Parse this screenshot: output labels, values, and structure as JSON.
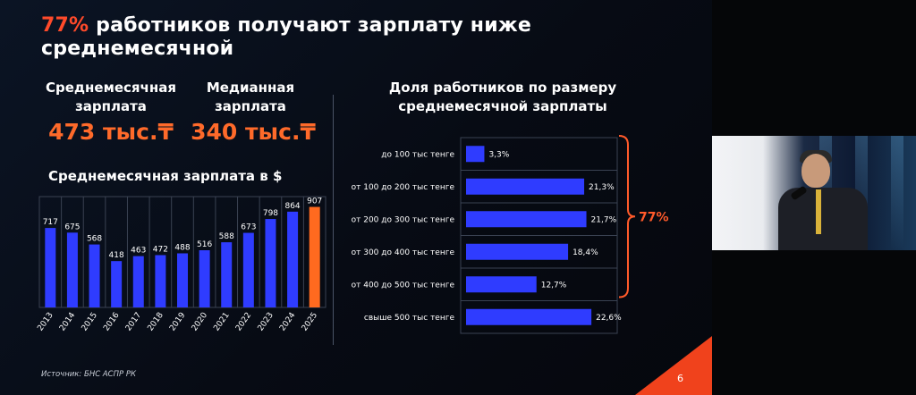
{
  "slide": {
    "title_accent": "77%",
    "title_rest": " работников получают зарплату ниже среднемесячной",
    "kpi1_label": "Среднемесячная зарплата",
    "kpi1_value": "473 тыс.₸",
    "kpi2_label": "Медианная зарплата",
    "kpi2_value": "340 тыс.₸",
    "left_chart_title": "Среднемесячная зарплата в $",
    "right_chart_title": "Доля работников по размеру среднемесячной зарплаты",
    "bracket_label": "77%",
    "source": "Источник: БНС АСПР РК",
    "page_number": "6"
  },
  "colors": {
    "bar_blue": "#2f3cff",
    "bar_highlight": "#ff6a1f",
    "accent": "#ff4a2a",
    "bracket": "#ff5a2a"
  },
  "chart_data": [
    {
      "type": "bar",
      "title": "Среднемесячная зарплата в $",
      "categories": [
        "2013",
        "2014",
        "2015",
        "2016",
        "2017",
        "2018",
        "2019",
        "2020",
        "2021",
        "2022",
        "2023",
        "2024",
        "2025"
      ],
      "values": [
        717,
        675,
        568,
        418,
        463,
        472,
        488,
        516,
        588,
        673,
        798,
        864,
        907
      ],
      "labels": [
        "717",
        "675",
        "568",
        "418",
        "463",
        "472",
        "488",
        "516",
        "588",
        "673",
        "798",
        "864",
        "907"
      ],
      "highlight_index": 12,
      "ylim": [
        0,
        1000
      ],
      "grid": false,
      "legend": "none"
    },
    {
      "type": "bar",
      "orientation": "horizontal",
      "title": "Доля работников по размеру среднемесячной зарплаты",
      "categories": [
        "до 100 тыс тенге",
        "от 100 до 200 тыс тенге",
        "от 200 до 300 тыс тенге",
        "от 300 до 400 тыс тенге",
        "от 400 до 500 тыс тенге",
        "свыше 500 тыс тенге"
      ],
      "values": [
        3.3,
        21.3,
        21.7,
        18.4,
        12.7,
        22.6
      ],
      "labels": [
        "3,3%",
        "21,3%",
        "21,7%",
        "18,4%",
        "12,7%",
        "22,6%"
      ],
      "xlim": [
        0,
        25
      ],
      "annotation": "77%",
      "grid": false,
      "legend": "none"
    }
  ]
}
